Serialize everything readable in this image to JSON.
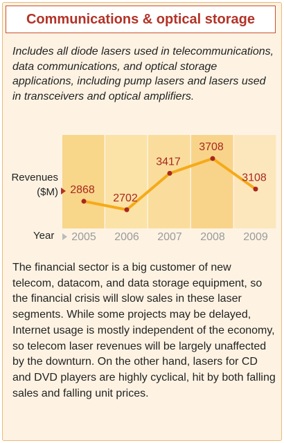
{
  "chart_data": {
    "type": "line",
    "title": "Communications & optical storage",
    "subtitle": "Includes all diode lasers used in telecommunications, data communications, and optical storage applications, including pump lasers and lasers used in transceivers and optical amplifiers.",
    "y_label": "Revenues ($M)",
    "x_label": "Year",
    "categories": [
      "2005",
      "2006",
      "2007",
      "2008",
      "2009"
    ],
    "values": [
      2868,
      2702,
      3417,
      3708,
      3108
    ],
    "color": "#f5aa1a",
    "marker_color": "#a8281e"
  },
  "body": "The financial sector is a big customer of new telecom, datacom, and data storage equipment, so the financial crisis will slow sales in these laser segments. While some projects may be delayed, Internet usage is mostly independent of the economy, so telecom laser revenues will be largely unaffected by the downturn. On the other hand, lasers for CD and DVD players are highly cyclical, hit by both falling sales and falling unit prices."
}
